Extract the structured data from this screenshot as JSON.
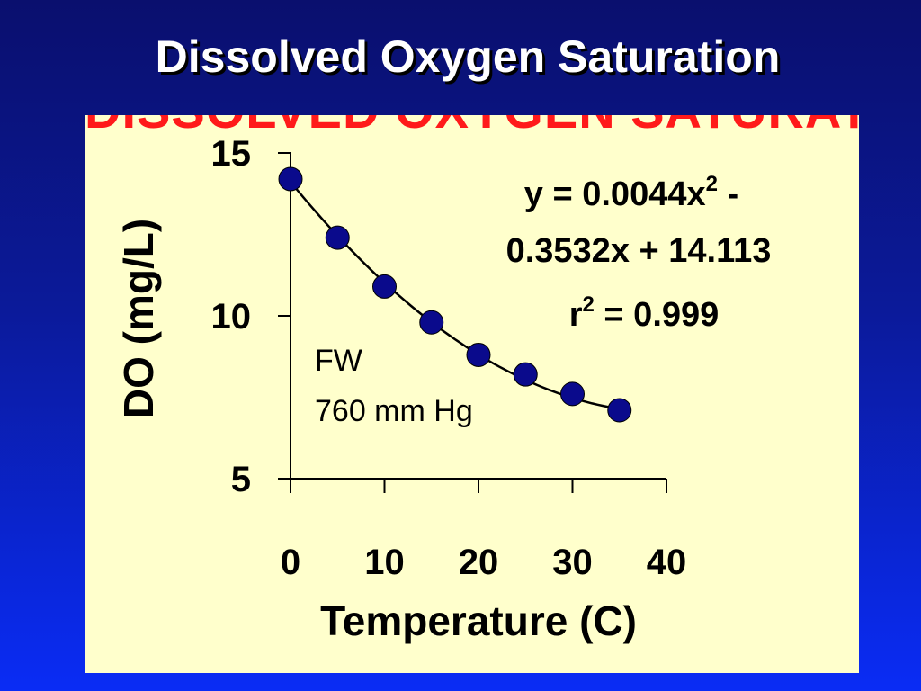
{
  "slide": {
    "title": "Dissolved Oxygen Saturation",
    "ghost_title": "DISSOLVED OXYGEN SATURATION"
  },
  "chart_data": {
    "type": "scatter",
    "title": "",
    "xlabel": "Temperature (C)",
    "ylabel": "DO (mg/L)",
    "xlim": [
      0,
      40
    ],
    "ylim": [
      5,
      15
    ],
    "x_ticks": [
      0,
      10,
      20,
      30,
      40
    ],
    "y_ticks": [
      5,
      10,
      15
    ],
    "grid": false,
    "series": [
      {
        "points": [
          {
            "x": 0,
            "y": 14.2
          },
          {
            "x": 5,
            "y": 12.4
          },
          {
            "x": 10,
            "y": 10.9
          },
          {
            "x": 15,
            "y": 9.8
          },
          {
            "x": 20,
            "y": 8.8
          },
          {
            "x": 25,
            "y": 8.2
          },
          {
            "x": 30,
            "y": 7.6
          },
          {
            "x": 35,
            "y": 7.1
          }
        ],
        "color": "#0a0a8c"
      }
    ],
    "trendline": {
      "type": "polynomial",
      "coefficients": [
        0.0044,
        -0.3532,
        14.113
      ],
      "x_range": [
        0,
        35
      ],
      "color": "#000000"
    },
    "equation": {
      "line1_main": "y = 0.0044x",
      "line1_sup": "2",
      "line1_tail": " -",
      "line2": "0.3532x + 14.113",
      "line3_main": "r",
      "line3_sup": "2",
      "line3_tail": " = 0.999"
    },
    "annotation": {
      "line1": "FW",
      "line2": "760 mm Hg"
    }
  }
}
